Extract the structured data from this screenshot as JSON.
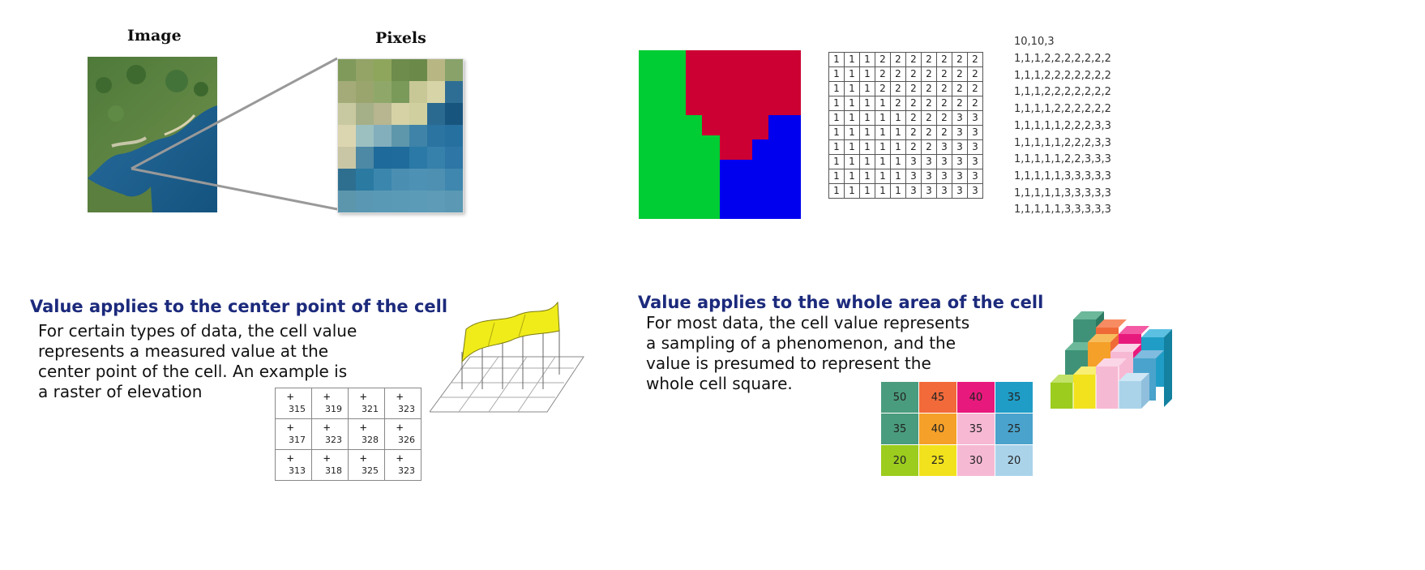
{
  "panel_image_pixels": {
    "image_label": "Image",
    "pixels_label": "Pixels",
    "pixel_colors": [
      [
        "#7f9a5a",
        "#93a466",
        "#8ea65c",
        "#6e8c4c",
        "#6b8a4a",
        "#b8b784",
        "#88a26a"
      ],
      [
        "#a4ab78",
        "#9aa56e",
        "#8fa86a",
        "#7a9a5a",
        "#c8c796",
        "#d7d5a8",
        "#2f6e94"
      ],
      [
        "#c8c9a0",
        "#a6b088",
        "#b7b690",
        "#d6d2a6",
        "#cfcf9f",
        "#2a6a91",
        "#18557e"
      ],
      [
        "#dcd6b0",
        "#9cc0c0",
        "#83aebc",
        "#5e97ab",
        "#3f83a8",
        "#2b73a0",
        "#2670a0"
      ],
      [
        "#c9c6a5",
        "#4d88a4",
        "#1e6a9a",
        "#1f6c9c",
        "#2a79a6",
        "#3680ac",
        "#2d76a5"
      ],
      [
        "#2e6f8f",
        "#2a7aa2",
        "#3b86ad",
        "#4a8fb2",
        "#4d92b4",
        "#4d90b2",
        "#3f87ae"
      ],
      [
        "#5b96ad",
        "#5a97b2",
        "#5a99b5",
        "#5b9ab6",
        "#5c9bb7",
        "#5d9bb6",
        "#5a98b3"
      ]
    ]
  },
  "panel_zones": {
    "grid": [
      [
        1,
        1,
        1,
        2,
        2,
        2,
        2,
        2,
        2,
        2
      ],
      [
        1,
        1,
        1,
        2,
        2,
        2,
        2,
        2,
        2,
        2
      ],
      [
        1,
        1,
        1,
        2,
        2,
        2,
        2,
        2,
        2,
        2
      ],
      [
        1,
        1,
        1,
        1,
        2,
        2,
        2,
        2,
        2,
        2
      ],
      [
        1,
        1,
        1,
        1,
        1,
        2,
        2,
        2,
        3,
        3
      ],
      [
        1,
        1,
        1,
        1,
        1,
        2,
        2,
        2,
        3,
        3
      ],
      [
        1,
        1,
        1,
        1,
        1,
        2,
        2,
        3,
        3,
        3
      ],
      [
        1,
        1,
        1,
        1,
        1,
        3,
        3,
        3,
        3,
        3
      ],
      [
        1,
        1,
        1,
        1,
        1,
        3,
        3,
        3,
        3,
        3
      ],
      [
        1,
        1,
        1,
        1,
        1,
        3,
        3,
        3,
        3,
        3
      ]
    ],
    "ascii_header": "10,10,3",
    "ascii_rows": [
      "1,1,1,2,2,2,2,2,2,2",
      "1,1,1,2,2,2,2,2,2,2",
      "1,1,1,2,2,2,2,2,2,2",
      "1,1,1,1,2,2,2,2,2,2",
      "1,1,1,1,1,2,2,2,3,3",
      "1,1,1,1,1,2,2,2,3,3",
      "1,1,1,1,1,2,2,3,3,3",
      "1,1,1,1,1,3,3,3,3,3",
      "1,1,1,1,1,3,3,3,3,3",
      "1,1,1,1,1,3,3,3,3,3"
    ],
    "zone_colors": {
      "1": "#00cc33",
      "2": "#cc0033",
      "3": "#0000ee"
    }
  },
  "panel_center": {
    "title": "Value applies to the center point of the cell",
    "body": "For certain types of data, the cell value\nrepresents a measured value at the\ncenter point of the cell. An example is\na raster of elevation",
    "values": [
      [
        "315",
        "319",
        "321",
        "323"
      ],
      [
        "317",
        "323",
        "328",
        "326"
      ],
      [
        "313",
        "318",
        "325",
        "323"
      ]
    ],
    "plus": "+"
  },
  "panel_area": {
    "title": "Value applies to the whole area of the cell",
    "body": "For most data, the cell value represents\na sampling of a phenomenon, and the\nvalue is presumed to represent the\nwhole cell square.",
    "values": [
      [
        "50",
        "45",
        "40",
        "35"
      ],
      [
        "35",
        "40",
        "35",
        "25"
      ],
      [
        "20",
        "25",
        "30",
        "20"
      ]
    ],
    "cell_colors": [
      [
        "#4a9c7e",
        "#f26a3a",
        "#e8197c",
        "#1f9dc6"
      ],
      [
        "#4a9c7e",
        "#f5a029",
        "#f7b8d4",
        "#4aa3cc"
      ],
      [
        "#9ccc1e",
        "#f2e21d",
        "#f6b9d3",
        "#aad3ea"
      ]
    ]
  }
}
